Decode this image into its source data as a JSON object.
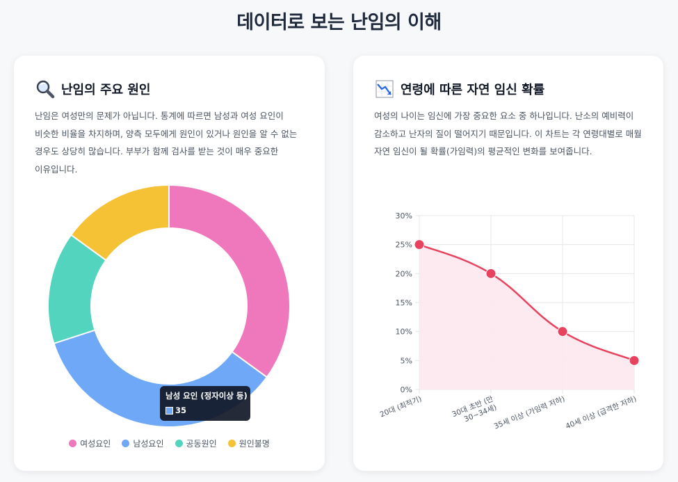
{
  "page": {
    "title": "데이터로 보는 난임의 이해"
  },
  "left_card": {
    "icon": "magnifier-icon",
    "title": "난임의 주요 원인",
    "description": "난임은 여성만의 문제가 아닙니다. 통계에 따르면 남성과 여성 요인이 비슷한 비율을 차지하며, 양측 모두에게 원인이 있거나 원인을 알 수 없는 경우도 상당히 많습니다. 부부가 함께 검사를 받는 것이 매우 중요한 이유입니다.",
    "tooltip": {
      "title": "남성 요인 (정자이상 등)",
      "value": "35"
    }
  },
  "right_card": {
    "icon": "chart-decreasing-icon",
    "title": "연령에 따른 자연 임신 확률",
    "description": "여성의 나이는 임신에 가장 중요한 요소 중 하나입니다. 난소의 예비력이 감소하고 난자의 질이 떨어지기 때문입니다. 이 차트는 각 연령대별로 매월 자연 임신이 될 확률(가임력)의 평균적인 변화를 보여줍니다."
  },
  "chart_data": [
    {
      "type": "pie",
      "variant": "doughnut",
      "categories": [
        "여성요인",
        "남성요인",
        "공동원인",
        "원인불명"
      ],
      "values": [
        35,
        35,
        15,
        15
      ],
      "colors": [
        "#ef77bb",
        "#6fa8f7",
        "#52d4be",
        "#f5c235"
      ],
      "legend_position": "bottom"
    },
    {
      "type": "area",
      "categories": [
        "20대 (최적기)",
        "30대 초반 (만 30~34세)",
        "35세 이상 (가임력 저하)",
        "40세 이상 (급격한 저하)"
      ],
      "category_lines": [
        [
          "20대 (최적기)"
        ],
        [
          "30대 초반 (만",
          "30~34세)"
        ],
        [
          "35세 이상 (가임력 저하)"
        ],
        [
          "40세 이상 (급격한 저하)"
        ]
      ],
      "series": [
        {
          "name": "자연 임신 확률",
          "values": [
            25,
            20,
            10,
            5
          ]
        }
      ],
      "ylim": [
        0,
        30
      ],
      "yticks": [
        "0%",
        "5%",
        "10%",
        "15%",
        "20%",
        "25%",
        "30%"
      ],
      "line_color": "#e8435e",
      "fill_color": "#fce8ee",
      "grid": true
    }
  ]
}
